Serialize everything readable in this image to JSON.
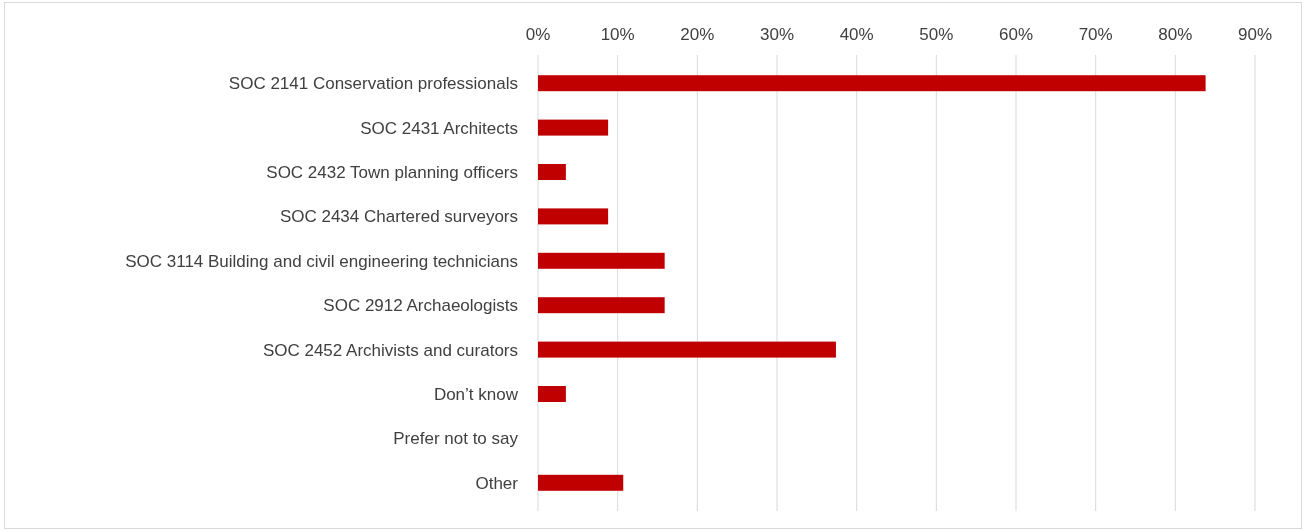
{
  "chart_data": {
    "type": "bar",
    "orientation": "horizontal",
    "categories": [
      "SOC 2141 Conservation professionals",
      "SOC 2431 Architects",
      "SOC 2432 Town planning officers",
      "SOC 2434 Chartered surveyors",
      "SOC 3114 Building and civil engineering technicians",
      "SOC 2912 Archaeologists",
      "SOC 2452 Archivists and curators",
      "Don’t know",
      "Prefer not to say",
      "Other"
    ],
    "values": [
      83.8,
      8.8,
      3.5,
      8.8,
      15.9,
      15.9,
      37.4,
      3.5,
      0,
      10.7
    ],
    "color": "#c00000",
    "xlim": [
      0,
      90
    ],
    "xticks": [
      {
        "value": 0,
        "label": "0%"
      },
      {
        "value": 10,
        "label": "10%"
      },
      {
        "value": 20,
        "label": "20%"
      },
      {
        "value": 30,
        "label": "30%"
      },
      {
        "value": 40,
        "label": "40%"
      },
      {
        "value": 50,
        "label": "50%"
      },
      {
        "value": 60,
        "label": "60%"
      },
      {
        "value": 70,
        "label": "70%"
      },
      {
        "value": 80,
        "label": "80%"
      },
      {
        "value": 90,
        "label": "90%"
      }
    ],
    "grid": "x"
  }
}
